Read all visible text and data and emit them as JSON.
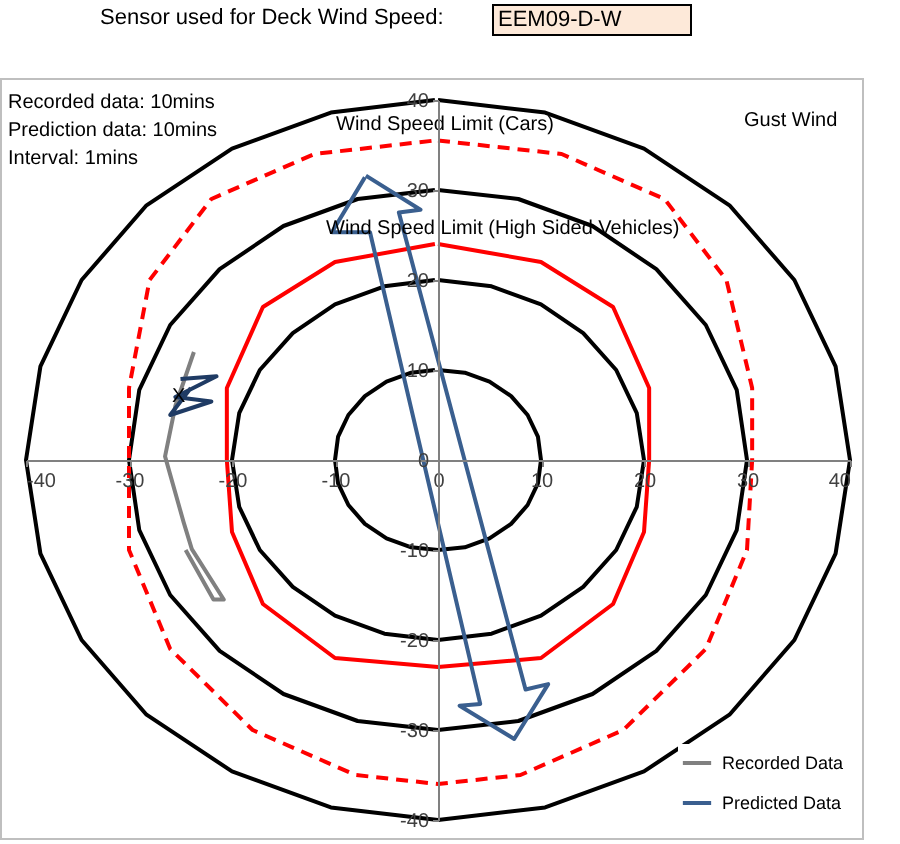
{
  "chart_data": {
    "type": "line",
    "title": "Sensor used for Deck Wind Speed:",
    "subtitle": "EEM09-D-W",
    "xlim": [
      -40,
      40
    ],
    "ylim": [
      -40,
      40
    ],
    "xticks": [
      -40,
      -30,
      -20,
      -10,
      0,
      10,
      20,
      30,
      40
    ],
    "yticks": [
      -40,
      -30,
      -20,
      -10,
      0,
      10,
      20,
      30,
      40
    ],
    "grid": false,
    "legend": "bottom right",
    "marker": "none",
    "annotations": [
      "Recorded data: 10mins",
      "Prediction data: 10mins",
      "Interval: 1mins",
      "Gust Wind",
      "Wind Speed Limit (Cars)",
      "Wind Speed Limit (High Sided Vehicles)",
      "X"
    ],
    "series": [
      {
        "color": "#000000",
        "x": [
          0,
          2.6,
          5,
          7.1,
          8.7,
          9.7,
          10,
          9.7,
          8.7,
          7.1,
          5,
          2.6,
          0,
          -2.6,
          -5,
          -7.1,
          -8.7,
          -9.7,
          -10,
          -9.7,
          -8.7,
          -7.1,
          -5,
          -2.6,
          -0.3
        ],
        "values": [
          10,
          9.7,
          8.7,
          7.1,
          5,
          2.6,
          0,
          -2.6,
          -5,
          -7.1,
          -8.7,
          -9.7,
          -10,
          -9.7,
          -8.7,
          -7.1,
          -5,
          -2.6,
          0,
          2.6,
          5,
          7.1,
          8.7,
          9.7,
          10
        ]
      },
      {
        "color": "#000000",
        "x": [
          0,
          5.2,
          10,
          14.1,
          17.3,
          19.3,
          20,
          19.3,
          17.3,
          14.1,
          10,
          5.2,
          0,
          -5.2,
          -10,
          -14.1,
          -17.3,
          -19.3,
          -20,
          -19.3,
          -17.3,
          -14.1,
          -10,
          -5.2,
          -0.3
        ],
        "values": [
          20,
          19.3,
          17.3,
          14.1,
          10,
          5.2,
          0,
          -5.2,
          -10,
          -14.1,
          -17.3,
          -19.3,
          -20,
          -19.3,
          -17.3,
          -14.1,
          -10,
          -5.2,
          0,
          5.2,
          10,
          14.1,
          17.3,
          19.3,
          20
        ]
      },
      {
        "color": "#000000",
        "x": [
          0,
          7.8,
          15,
          21.2,
          26,
          29,
          30,
          29,
          26,
          21.2,
          15,
          7.8,
          0,
          -7.8,
          -15,
          -21.2,
          -26,
          -29,
          -30,
          -29,
          -26,
          -21.2,
          -15,
          -7.8,
          -0.3
        ],
        "values": [
          30,
          29,
          26,
          21.2,
          15,
          7.8,
          0,
          -7.8,
          -15,
          -21.2,
          -26,
          -29,
          -30,
          -29,
          -26,
          -21.2,
          -15,
          -7.8,
          0,
          7.8,
          15,
          21.2,
          26,
          29,
          30
        ]
      },
      {
        "color": "#000000",
        "x": [
          0,
          10.4,
          20,
          28.3,
          34.6,
          38.6,
          40,
          38.6,
          34.6,
          28.3,
          20,
          10.4,
          0,
          -10.4,
          -20,
          -28.3,
          -34.6,
          -38.6,
          -40,
          -38.6,
          -34.6,
          -28.3,
          -20,
          -10.4,
          -0.3
        ],
        "values": [
          40,
          38.6,
          34.6,
          28.3,
          20,
          10.4,
          0,
          -10.4,
          -20,
          -28.3,
          -34.6,
          -38.6,
          -40,
          -38.6,
          -34.6,
          -28.3,
          -20,
          -10.4,
          0,
          10.4,
          20,
          28.3,
          34.6,
          38.6,
          40
        ]
      },
      {
        "color": "#ff0000",
        "x": [
          0,
          10,
          17,
          20.5,
          20.5,
          20,
          17,
          10,
          0,
          -10,
          -17,
          -20,
          -20.5,
          -20.5,
          -17,
          -10,
          -0.3
        ],
        "values": [
          24,
          22,
          17,
          8,
          0,
          -8,
          -16,
          -22,
          -23,
          -22,
          -16,
          -8,
          0,
          8,
          17,
          22,
          24
        ]
      },
      {
        "color": "#ff0000",
        "line_style": "dashed",
        "x": [
          0,
          12,
          22,
          28,
          30.5,
          30.5,
          30,
          26,
          18,
          8,
          0,
          -8,
          -18,
          -26,
          -30,
          -30,
          -30,
          -28,
          -22,
          -12,
          -0.3
        ],
        "values": [
          35.5,
          34,
          29,
          20,
          8,
          0,
          -10,
          -21,
          -30,
          -35,
          -36,
          -35,
          -30,
          -21,
          -10,
          0,
          8,
          20,
          29,
          34,
          35.5
        ]
      },
      {
        "name": "Recorded Data",
        "color": "#808080",
        "x": [
          -23.7,
          -25.5,
          -26.5,
          -24.7,
          -23.9,
          -20.8,
          -21.8,
          -24.5
        ],
        "values": [
          12,
          6,
          0.4,
          -6.9,
          -9.9,
          -15.5,
          -15.5,
          -10
        ]
      },
      {
        "color": "#1f3b64",
        "x": [
          -25,
          -21.5,
          -25.5,
          -22,
          -26,
          -24
        ],
        "values": [
          9,
          9.3,
          7,
          6.5,
          5,
          8
        ]
      },
      {
        "name": "Predicted Data",
        "color": "#3a5f8f",
        "x": [
          -7,
          -1.7,
          -3.8,
          8.5,
          10.7,
          7.4,
          2.1,
          4.1,
          -6.6,
          -10.3,
          -7.1
        ],
        "values": [
          31.6,
          27.8,
          27.5,
          -25.5,
          -24.9,
          -31,
          -27.3,
          -27.1,
          25.3,
          25.3,
          31.4
        ]
      }
    ]
  }
}
